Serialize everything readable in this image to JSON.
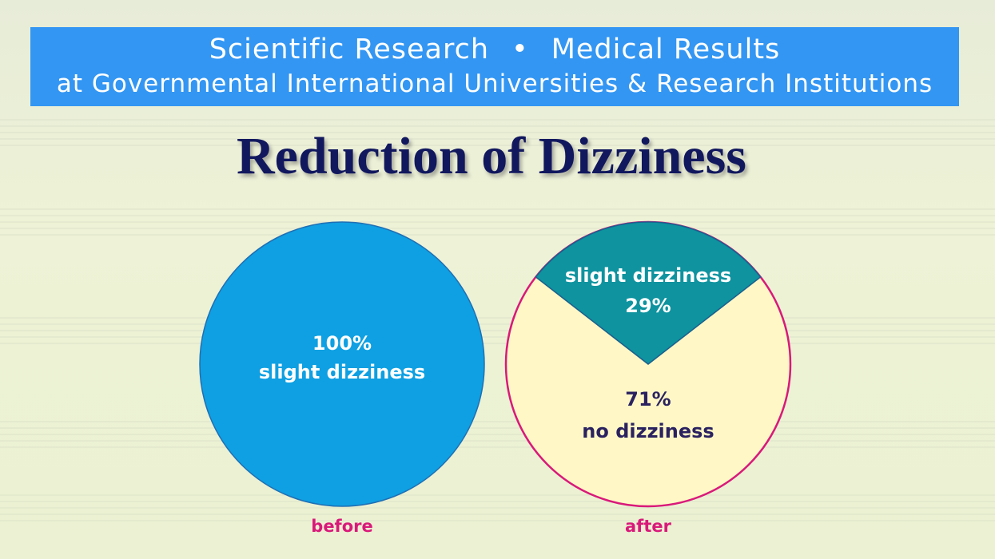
{
  "banner": {
    "line1_left": "Scientific Research",
    "line1_separator": "•",
    "line1_right": "Medical Results",
    "line2": "at Governmental International Universities & Research Institutions",
    "background_color": "#3396f3"
  },
  "title": "Reduction of Dizziness",
  "chart_data": [
    {
      "type": "pie",
      "label": "before",
      "slices": [
        {
          "label": "slight dizziness",
          "value": 100,
          "value_text": "100%",
          "color": "#0ea0e2"
        }
      ]
    },
    {
      "type": "pie",
      "label": "after",
      "slices": [
        {
          "label": "slight dizziness",
          "value": 29,
          "value_text": "29%",
          "color": "#0e939f"
        },
        {
          "label": "no dizziness",
          "value": 71,
          "value_text": "71%",
          "color": "#fff8c6"
        }
      ],
      "border_color": "#d9197a"
    }
  ],
  "colors": {
    "title": "#12185e",
    "chart_label": "#d9197a",
    "dark_text": "#2a2260"
  }
}
